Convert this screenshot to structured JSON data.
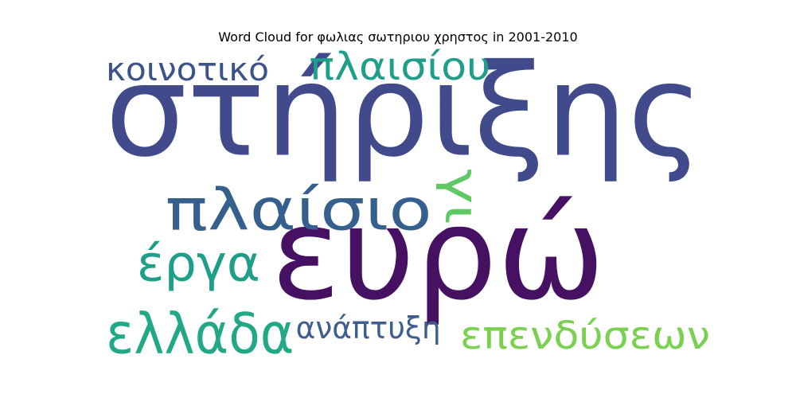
{
  "chart_data": {
    "type": "wordcloud",
    "title": "Word Cloud for φωλιας σωτηριου χρηστος in 2001-2010",
    "words": [
      {
        "text": "στήριξης",
        "color": "#414a8a",
        "rotated": false
      },
      {
        "text": "ευρώ",
        "color": "#471163",
        "rotated": false
      },
      {
        "text": "πλαίσιο",
        "color": "#355f8d",
        "rotated": false
      },
      {
        "text": "ελλάδα",
        "color": "#22a884",
        "rotated": false
      },
      {
        "text": "έργα",
        "color": "#1f9e89",
        "rotated": false
      },
      {
        "text": "επενδύσεων",
        "color": "#7ad151",
        "rotated": false
      },
      {
        "text": "πλαισίου",
        "color": "#1f9e89",
        "rotated": false
      },
      {
        "text": "κοινοτικό",
        "color": "#3b528b",
        "rotated": false
      },
      {
        "text": "ανάπτυξη",
        "color": "#3e5f8e",
        "rotated": false
      },
      {
        "text": "γι",
        "color": "#5ec962",
        "rotated": true
      }
    ]
  }
}
